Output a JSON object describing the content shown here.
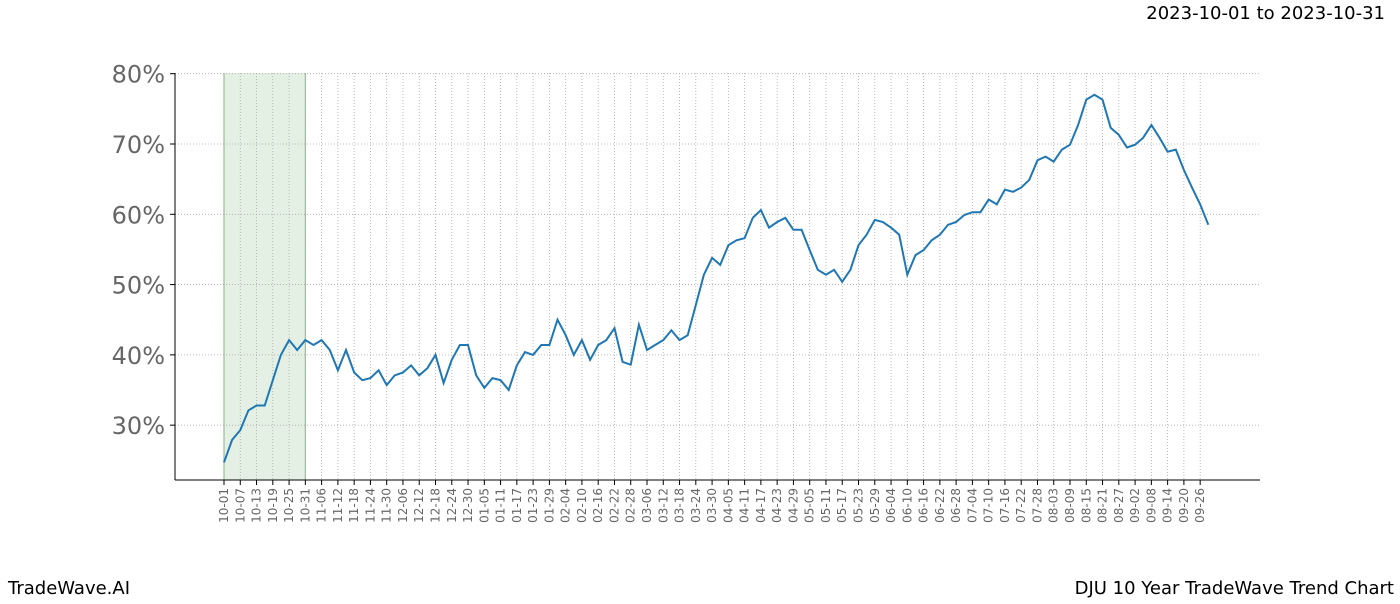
{
  "header": "2023-10-01 to 2023-10-31",
  "footer_left": "TradeWave.AI",
  "footer_right": "DJU 10 Year TradeWave Trend Chart",
  "chart_data": {
    "type": "line",
    "color": "#1f77b4",
    "grid": true,
    "highlight": {
      "start": "10-01",
      "end": "10-31",
      "color": "#e5f0e5"
    },
    "x": [
      "10-01",
      "10-04",
      "10-07",
      "10-10",
      "10-13",
      "10-16",
      "10-19",
      "10-22",
      "10-25",
      "10-28",
      "10-31",
      "11-03",
      "11-06",
      "11-09",
      "11-12",
      "11-15",
      "11-18",
      "11-21",
      "11-24",
      "11-27",
      "11-30",
      "12-03",
      "12-06",
      "12-09",
      "12-12",
      "12-15",
      "12-18",
      "12-21",
      "12-24",
      "12-27",
      "12-30",
      "01-02",
      "01-05",
      "01-08",
      "01-11",
      "01-14",
      "01-17",
      "01-20",
      "01-23",
      "01-26",
      "01-29",
      "02-01",
      "02-04",
      "02-07",
      "02-10",
      "02-13",
      "02-16",
      "02-19",
      "02-22",
      "02-25",
      "02-28",
      "03-03",
      "03-06",
      "03-09",
      "03-12",
      "03-15",
      "03-18",
      "03-21",
      "03-24",
      "03-27",
      "03-30",
      "04-02",
      "04-05",
      "04-08",
      "04-11",
      "04-14",
      "04-17",
      "04-20",
      "04-23",
      "04-26",
      "04-29",
      "05-02",
      "05-05",
      "05-08",
      "05-11",
      "05-14",
      "05-17",
      "05-20",
      "05-23",
      "05-26",
      "05-29",
      "06-01",
      "06-04",
      "06-07",
      "06-10",
      "06-13",
      "06-16",
      "06-19",
      "06-22",
      "06-25",
      "06-28",
      "07-01",
      "07-04",
      "07-07",
      "07-10",
      "07-13",
      "07-16",
      "07-19",
      "07-22",
      "07-25",
      "07-28",
      "07-31",
      "08-03",
      "08-06",
      "08-09",
      "08-12",
      "08-15",
      "08-18",
      "08-21",
      "08-24",
      "08-27",
      "08-30",
      "09-02",
      "09-05",
      "09-08",
      "09-11",
      "09-14",
      "09-17",
      "09-20",
      "09-23",
      "09-26",
      "09-29"
    ],
    "values": [
      24.7,
      27.9,
      29.3,
      32.1,
      32.8,
      32.8,
      36.4,
      40.0,
      42.1,
      40.7,
      42.1,
      41.4,
      42.1,
      40.7,
      37.8,
      40.7,
      37.5,
      36.4,
      36.7,
      37.8,
      35.7,
      37.1,
      37.5,
      38.5,
      37.1,
      38.1,
      40.0,
      36.0,
      39.3,
      41.4,
      41.4,
      37.1,
      35.3,
      36.7,
      36.4,
      35.0,
      38.5,
      40.4,
      40.0,
      41.4,
      41.4,
      45.0,
      42.8,
      40.0,
      42.1,
      39.3,
      41.4,
      42.1,
      43.8,
      39.0,
      38.6,
      44.3,
      40.7,
      41.4,
      42.1,
      43.5,
      42.1,
      42.8,
      47.1,
      51.4,
      53.8,
      52.8,
      55.6,
      56.3,
      56.6,
      59.5,
      60.6,
      58.1,
      58.9,
      59.5,
      57.8,
      57.8,
      54.9,
      52.1,
      51.4,
      52.1,
      50.4,
      52.1,
      55.6,
      57.1,
      59.2,
      58.9,
      58.1,
      57.1,
      51.4,
      54.2,
      54.9,
      56.3,
      57.1,
      58.5,
      58.9,
      59.9,
      60.3,
      60.3,
      62.1,
      61.4,
      63.5,
      63.2,
      63.8,
      64.9,
      67.7,
      68.2,
      67.5,
      69.2,
      69.9,
      72.7,
      76.3,
      77.0,
      76.3,
      72.3,
      71.3,
      69.5,
      69.9,
      70.9,
      72.7,
      70.9,
      68.9,
      69.2,
      66.3,
      63.8,
      61.4,
      58.5
    ],
    "ylim": [
      22.2,
      80.1
    ],
    "yticks": [
      {
        "value": 30,
        "label": "30%"
      },
      {
        "value": 40,
        "label": "40%"
      },
      {
        "value": 50,
        "label": "50%"
      },
      {
        "value": 60,
        "label": "60%"
      },
      {
        "value": 70,
        "label": "70%"
      },
      {
        "value": 80,
        "label": "80%"
      }
    ],
    "xticks": [
      "10-01",
      "10-07",
      "10-13",
      "10-19",
      "10-25",
      "10-31",
      "11-06",
      "11-12",
      "11-18",
      "11-24",
      "11-30",
      "12-06",
      "12-12",
      "12-18",
      "12-24",
      "12-30",
      "01-05",
      "01-11",
      "01-17",
      "01-23",
      "01-29",
      "02-04",
      "02-10",
      "02-16",
      "02-22",
      "02-28",
      "03-06",
      "03-12",
      "03-18",
      "03-24",
      "03-30",
      "04-05",
      "04-11",
      "04-17",
      "04-23",
      "04-29",
      "05-05",
      "05-11",
      "05-17",
      "05-23",
      "05-29",
      "06-04",
      "06-10",
      "06-16",
      "06-22",
      "06-28",
      "07-04",
      "07-10",
      "07-16",
      "07-22",
      "07-28",
      "08-03",
      "08-09",
      "08-15",
      "08-21",
      "08-27",
      "09-02",
      "09-08",
      "09-14",
      "09-20",
      "09-26"
    ]
  }
}
